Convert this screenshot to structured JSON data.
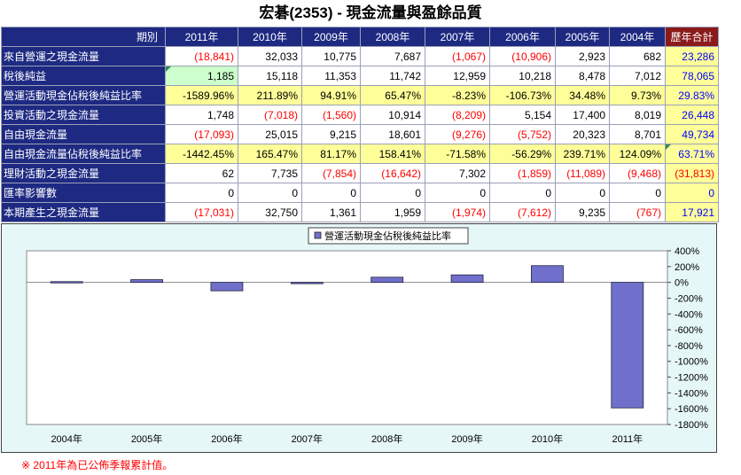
{
  "page_title": "宏碁(2353) -  現金流量與盈餘品質",
  "table": {
    "corner_label": "期別",
    "columns": [
      "2011年",
      "2010年",
      "2009年",
      "2008年",
      "2007年",
      "2006年",
      "2005年",
      "2004年"
    ],
    "total_label": "歷年合計",
    "rows": [
      {
        "label": "來自營運之現金流量",
        "values": [
          "(18,841)",
          "32,033",
          "10,775",
          "7,687",
          "(1,067)",
          "(10,906)",
          "2,923",
          "682"
        ],
        "total": "23,286"
      },
      {
        "label": "稅後純益",
        "values": [
          "1,185",
          "15,118",
          "11,353",
          "11,742",
          "12,959",
          "10,218",
          "8,478",
          "7,012"
        ],
        "total": "78,065"
      },
      {
        "label": "營運活動現金佔稅後純益比率",
        "values": [
          "-1589.96%",
          "211.89%",
          "94.91%",
          "65.47%",
          "-8.23%",
          "-106.73%",
          "34.48%",
          "9.73%"
        ],
        "total": "29.83%"
      },
      {
        "label": "投資活動之現金流量",
        "values": [
          "1,748",
          "(7,018)",
          "(1,560)",
          "10,914",
          "(8,209)",
          "5,154",
          "17,400",
          "8,019"
        ],
        "total": "26,448"
      },
      {
        "label": "自由現金流量",
        "values": [
          "(17,093)",
          "25,015",
          "9,215",
          "18,601",
          "(9,276)",
          "(5,752)",
          "20,323",
          "8,701"
        ],
        "total": "49,734"
      },
      {
        "label": "自由現金流量佔稅後純益比率",
        "values": [
          "-1442.45%",
          "165.47%",
          "81.17%",
          "158.41%",
          "-71.58%",
          "-56.29%",
          "239.71%",
          "124.09%"
        ],
        "total": "63.71%"
      },
      {
        "label": "理財活動之現金流量",
        "values": [
          "62",
          "7,735",
          "(7,854)",
          "(16,642)",
          "7,302",
          "(1,859)",
          "(11,089)",
          "(9,468)"
        ],
        "total": "(31,813)"
      },
      {
        "label": "匯率影響數",
        "values": [
          "0",
          "0",
          "0",
          "0",
          "0",
          "0",
          "0",
          "0"
        ],
        "total": "0"
      },
      {
        "label": "本期產生之現金流量",
        "values": [
          "(17,031)",
          "32,750",
          "1,361",
          "1,959",
          "(1,974)",
          "(7,612)",
          "9,235",
          "(767)"
        ],
        "total": "17,921"
      }
    ]
  },
  "chart_data": {
    "type": "bar",
    "legend": "營運活動現金佔稅後純益比率",
    "legend_position": "top-center",
    "categories": [
      "2004年",
      "2005年",
      "2006年",
      "2007年",
      "2008年",
      "2009年",
      "2010年",
      "2011年"
    ],
    "values": [
      9.73,
      34.48,
      -106.73,
      -8.23,
      65.47,
      94.91,
      211.89,
      -1589.96
    ],
    "ylim": [
      -1800,
      400
    ],
    "ytick_step": 200,
    "ytick_labels": [
      "400%",
      "200%",
      "0%",
      "-200%",
      "-400%",
      "-600%",
      "-800%",
      "-1000%",
      "-1200%",
      "-1400%",
      "-1600%",
      "-1800%"
    ],
    "bar_color": "#7070cc",
    "background": "#e6f7f8",
    "plot_background": "#ffffff"
  },
  "footnote": "※ 2011年為已公佈季報累計值。"
}
